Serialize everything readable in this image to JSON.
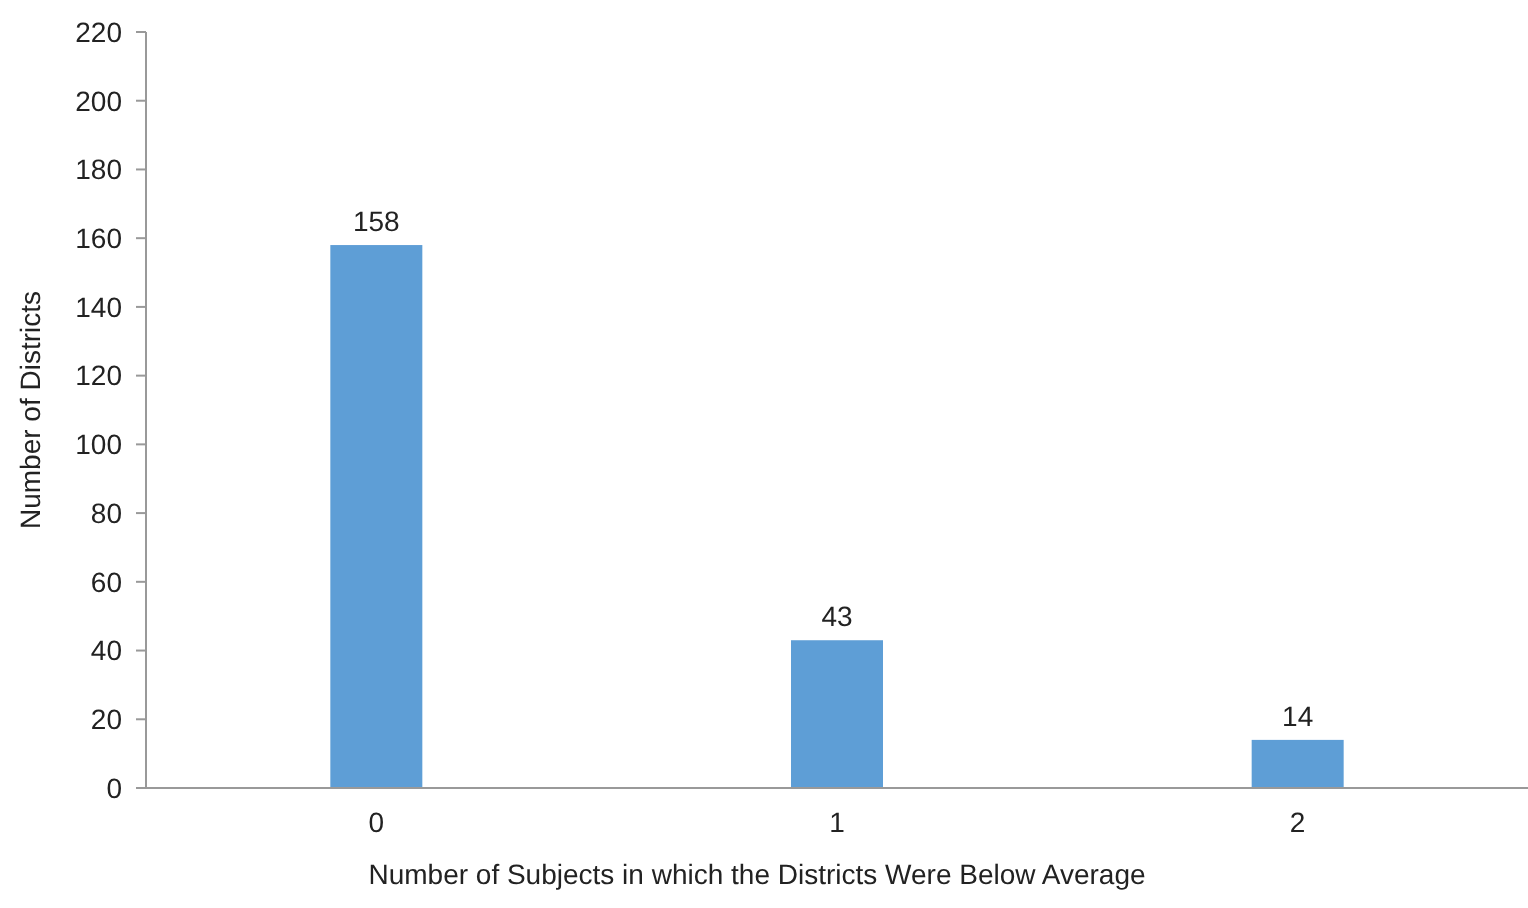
{
  "chart_data": {
    "type": "bar",
    "xlabel": "Number of Subjects in which the Districts Were Below Average",
    "ylabel": "Number of Districts",
    "categories": [
      "0",
      "1",
      "2"
    ],
    "values": [
      158,
      43,
      14
    ],
    "color": "#5e9ed6",
    "ylim": [
      0,
      220
    ],
    "yticks": [
      0,
      20,
      40,
      60,
      80,
      100,
      120,
      140,
      160,
      180,
      200,
      220
    ],
    "data_labels": true,
    "grid": false
  }
}
